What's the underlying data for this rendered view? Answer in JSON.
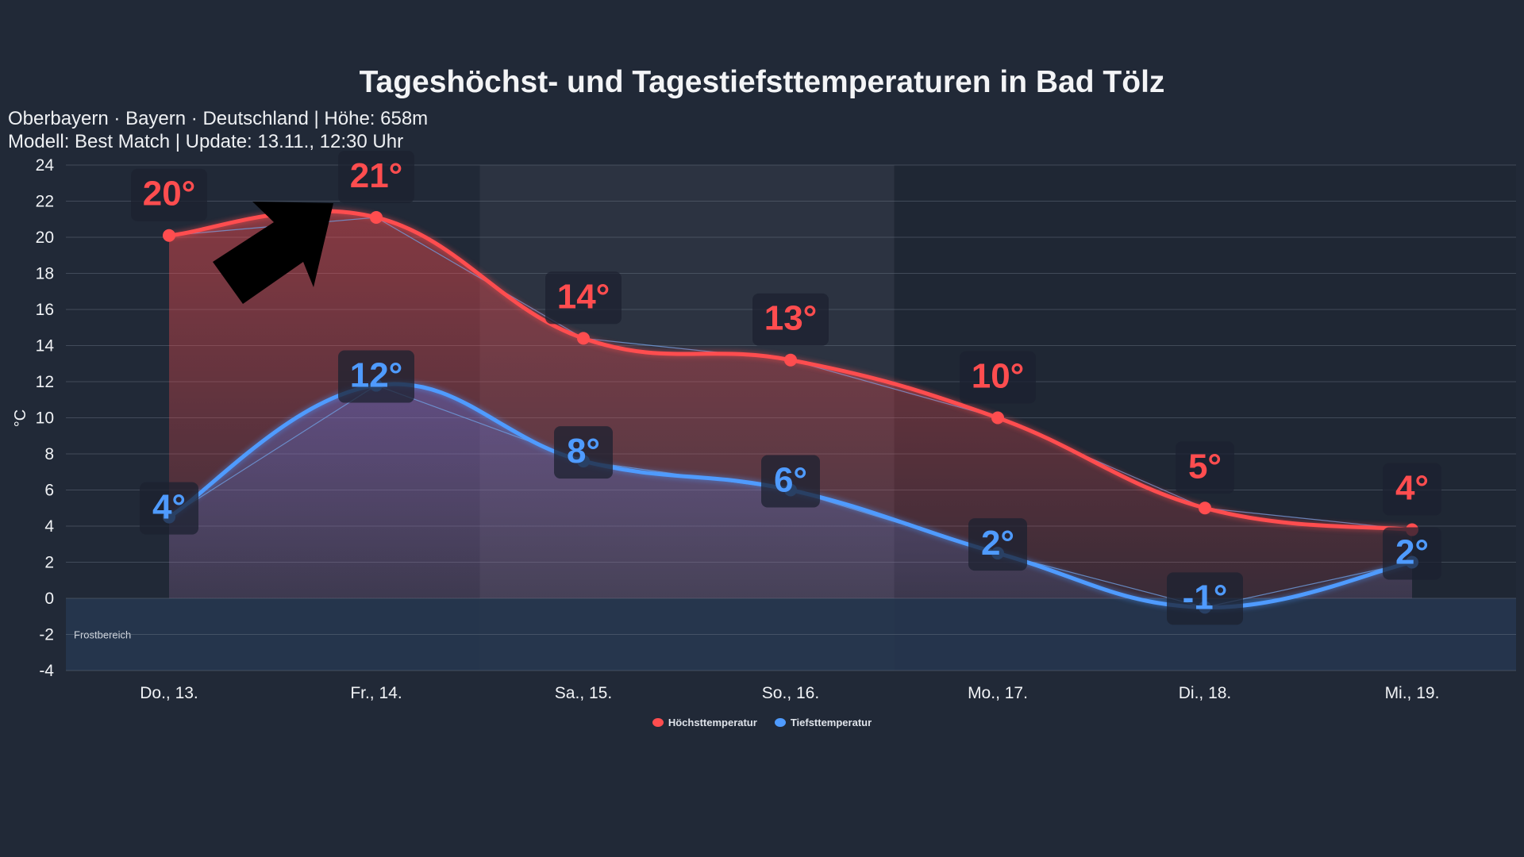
{
  "chart_data": {
    "type": "line",
    "title": "Tageshöchst- und Tagestiefsttemperaturen in Bad Tölz",
    "subtitle_lines": [
      "Oberbayern · Bayern · Deutschland | Höhe: 658m",
      "Modell: Best Match | Update: 13.11., 12:30 Uhr"
    ],
    "xlabel": "",
    "ylabel": "°C",
    "ylim": [
      -4,
      24
    ],
    "yticks": [
      24,
      22,
      20,
      18,
      16,
      14,
      12,
      10,
      8,
      6,
      4,
      2,
      0,
      -2,
      -4
    ],
    "categories": [
      "Do., 13.",
      "Fr., 14.",
      "Sa., 15.",
      "So., 16.",
      "Mo., 17.",
      "Di., 18.",
      "Mi., 19."
    ],
    "series": [
      {
        "name": "Höchsttemperatur",
        "color": "#ff4d4f",
        "values": [
          20.1,
          21.1,
          14.4,
          13.2,
          10.0,
          5.0,
          3.8
        ],
        "labels": [
          "20°",
          "21°",
          "14°",
          "13°",
          "10°",
          "5°",
          "4°"
        ]
      },
      {
        "name": "Tiefsttemperatur",
        "color": "#4f9bff",
        "values": [
          4.5,
          11.8,
          7.6,
          6.0,
          2.5,
          -0.5,
          2.0
        ],
        "labels": [
          "4°",
          "12°",
          "8°",
          "6°",
          "2°",
          "-1°",
          "2°"
        ]
      }
    ],
    "annotations": [
      {
        "text": "Frostbereich",
        "range": [
          -4,
          0
        ]
      }
    ],
    "weekend_categories": [
      "Sa., 15.",
      "So., 16."
    ],
    "grid": true,
    "legend_position": "bottom-center"
  }
}
